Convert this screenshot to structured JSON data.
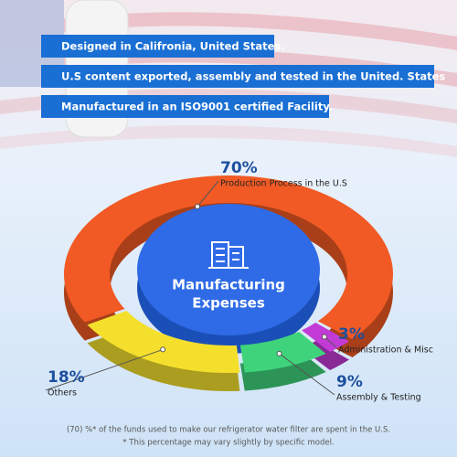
{
  "banners": [
    "Designed in Califronia, United States.",
    "U.S content exported, assembly and tested in the United. States",
    "Manufactured in an ISO9001 certified Facility."
  ],
  "chart_data": {
    "type": "pie",
    "center_label": [
      "Manufacturing",
      "Expenses"
    ],
    "categories": [
      "Production Process in the U.S",
      "Administration & Misc",
      "Assembly & Testing",
      "Others"
    ],
    "values": [
      70,
      3,
      9,
      18
    ],
    "value_labels": [
      "70%",
      "3%",
      "9%",
      "18%"
    ],
    "colors": [
      "#f15a24",
      "#c23bd6",
      "#3fd47c",
      "#f4e02c"
    ]
  },
  "footnotes": [
    "(70) %* of the funds used to make our refrigerator water filter are spent in the U.S.",
    "* This percentage may vary slightly by specific model."
  ]
}
